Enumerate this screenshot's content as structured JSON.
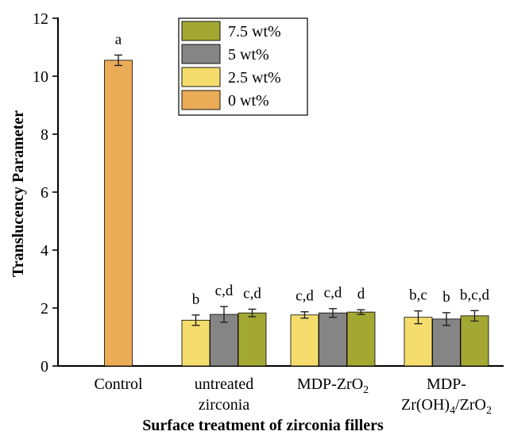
{
  "chart_data": {
    "type": "bar",
    "xlabel": "Surface treatment of zirconia fillers",
    "ylabel": "Translucency Parameter",
    "ylim": [
      0,
      12
    ],
    "yticks": [
      "0",
      "2",
      "4",
      "6",
      "8",
      "10",
      "12"
    ],
    "grid": false,
    "legend_placement": "top",
    "groups": [
      {
        "label_lines": [
          [
            {
              "t": "Control"
            }
          ]
        ],
        "bars": [
          {
            "series": "0 wt%",
            "value": 10.55,
            "error": 0.18,
            "letter": "a"
          }
        ]
      },
      {
        "label_lines": [
          [
            {
              "t": "untreated"
            }
          ],
          [
            {
              "t": "zirconia"
            }
          ]
        ],
        "bars": [
          {
            "series": "2.5 wt%",
            "value": 1.58,
            "error": 0.18,
            "letter": "b"
          },
          {
            "series": "5 wt%",
            "value": 1.78,
            "error": 0.27,
            "letter": "c,d"
          },
          {
            "series": "7.5 wt%",
            "value": 1.83,
            "error": 0.13,
            "letter": "c,d"
          }
        ]
      },
      {
        "label_lines": [
          [
            {
              "t": "MDP-ZrO"
            },
            {
              "t": "2",
              "sub": true
            }
          ]
        ],
        "bars": [
          {
            "series": "2.5 wt%",
            "value": 1.76,
            "error": 0.11,
            "letter": "c,d"
          },
          {
            "series": "5 wt%",
            "value": 1.83,
            "error": 0.15,
            "letter": "c,d"
          },
          {
            "series": "7.5 wt%",
            "value": 1.86,
            "error": 0.08,
            "letter": "d"
          }
        ]
      },
      {
        "label_lines": [
          [
            {
              "t": "MDP-"
            }
          ],
          [
            {
              "t": "Zr(OH)"
            },
            {
              "t": "4",
              "sub": true
            },
            {
              "t": "/ZrO"
            },
            {
              "t": "2",
              "sub": true
            }
          ]
        ],
        "bars": [
          {
            "series": "2.5 wt%",
            "value": 1.68,
            "error": 0.22,
            "letter": "b,c"
          },
          {
            "series": "5 wt%",
            "value": 1.62,
            "error": 0.22,
            "letter": "b"
          },
          {
            "series": "7.5 wt%",
            "value": 1.73,
            "error": 0.18,
            "letter": "b,c,d"
          }
        ]
      }
    ],
    "legend": [
      {
        "label": "7.5 wt%",
        "color": "#a3a833"
      },
      {
        "label": "5 wt%",
        "color": "#858585"
      },
      {
        "label": "2.5 wt%",
        "color": "#f5dd6d"
      },
      {
        "label": "0 wt%",
        "color": "#ebac58"
      }
    ]
  }
}
